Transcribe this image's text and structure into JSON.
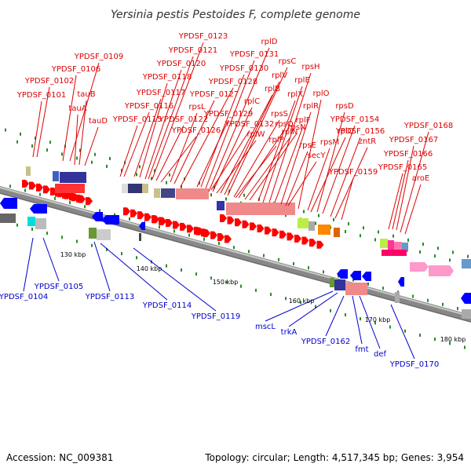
{
  "title": "Yersinia pestis Pestoides F, complete genome",
  "accession": "Accession: NC_009381",
  "topology": "Topology: circular; Length: 4,517,345 bp; Genes: 3,954",
  "colors": {
    "forward_label": "#dd0000",
    "reverse_label": "#0000cc",
    "backbone": "#888888",
    "tick": "#2a8a2a"
  },
  "scale_labels": [
    "130 kbp",
    "140 kbp",
    "150 kbp",
    "160 kbp",
    "170 kbp",
    "180 kbp"
  ],
  "forward_genes": [
    "YPDSF_0101",
    "YPDSF_0102",
    "YPDSF_0106",
    "YPDSF_0109",
    "tauA",
    "tauB",
    "tauD",
    "YPDSF_0115",
    "YPDSF_0116",
    "YPDSF_0117",
    "YPDSF_0118",
    "YPDSF_0120",
    "YPDSF_0121",
    "YPDSF_0123",
    "YPDSF_0122",
    "YPDSF_0126",
    "rpsL",
    "YPDSF_0127",
    "YPDSF_0128",
    "YPDSF_0129",
    "YPDSF_0130",
    "YPDSF_0131",
    "YPDSF_0132",
    "rplD",
    "rplC",
    "rplW",
    "rplB",
    "rplV",
    "rpsC",
    "rpsS",
    "rplP",
    "rpsQ",
    "rplN",
    "rpsN",
    "rplX",
    "rplE",
    "rpsH",
    "rplF",
    "rplR",
    "rpsE",
    "secY",
    "rplO",
    "rpsM",
    "rplQ",
    "rpsD",
    "YPDSF_0154",
    "YPDSF_0156",
    "zntR",
    "YPDSF_0159",
    "YPDSF_0165",
    "YPDSF_0166",
    "YPDSF_0167",
    "YPDSF_0168",
    "aroE"
  ],
  "reverse_genes": [
    "YPDSF_0104",
    "YPDSF_0105",
    "YPDSF_0113",
    "YPDSF_0114",
    "YPDSF_0119",
    "mscL",
    "trkA",
    "YPDSF_0162",
    "fmt",
    "def",
    "YPDSF_0170"
  ]
}
